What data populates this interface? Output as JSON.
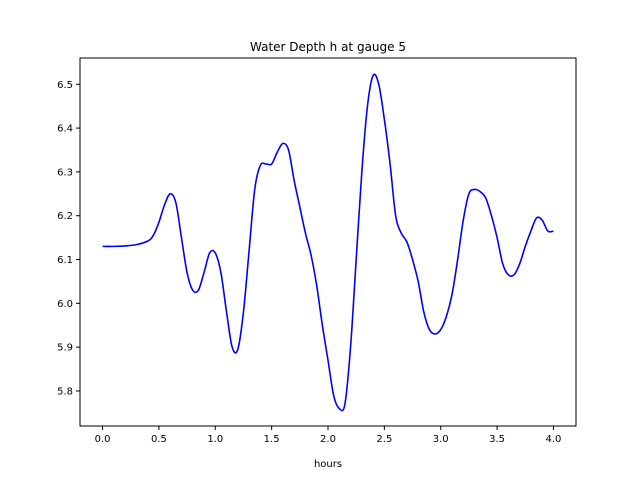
{
  "chart_data": {
    "type": "line",
    "title": "Water Depth h at gauge 5",
    "xlabel": "hours",
    "ylabel": "",
    "xlim": [
      -0.2,
      4.2
    ],
    "ylim": [
      5.72,
      6.56
    ],
    "xticks": [
      0.0,
      0.5,
      1.0,
      1.5,
      2.0,
      2.5,
      3.0,
      3.5,
      4.0
    ],
    "xtick_labels": [
      "0.0",
      "0.5",
      "1.0",
      "1.5",
      "2.0",
      "2.5",
      "3.0",
      "3.5",
      "4.0"
    ],
    "yticks": [
      5.8,
      5.9,
      6.0,
      6.1,
      6.2,
      6.3,
      6.4,
      6.5
    ],
    "ytick_labels": [
      "5.8",
      "5.9",
      "6.0",
      "6.1",
      "6.2",
      "6.3",
      "6.4",
      "6.5"
    ],
    "grid": false,
    "series": [
      {
        "color": "#0000ff",
        "x": [
          0.0,
          0.1,
          0.2,
          0.3,
          0.4,
          0.45,
          0.5,
          0.55,
          0.6,
          0.65,
          0.7,
          0.75,
          0.8,
          0.85,
          0.9,
          0.95,
          1.0,
          1.05,
          1.1,
          1.15,
          1.2,
          1.25,
          1.3,
          1.35,
          1.4,
          1.45,
          1.5,
          1.55,
          1.6,
          1.65,
          1.7,
          1.75,
          1.8,
          1.85,
          1.9,
          1.95,
          2.0,
          2.05,
          2.1,
          2.15,
          2.2,
          2.25,
          2.3,
          2.35,
          2.4,
          2.45,
          2.5,
          2.55,
          2.6,
          2.65,
          2.7,
          2.75,
          2.8,
          2.85,
          2.9,
          2.95,
          3.0,
          3.05,
          3.1,
          3.15,
          3.2,
          3.25,
          3.3,
          3.35,
          3.4,
          3.45,
          3.5,
          3.55,
          3.6,
          3.65,
          3.7,
          3.75,
          3.8,
          3.85,
          3.9,
          3.95,
          4.0
        ],
        "y": [
          6.13,
          6.13,
          6.131,
          6.134,
          6.142,
          6.155,
          6.185,
          6.225,
          6.25,
          6.23,
          6.15,
          6.07,
          6.03,
          6.03,
          6.07,
          6.115,
          6.115,
          6.07,
          5.98,
          5.9,
          5.895,
          5.98,
          6.12,
          6.26,
          6.315,
          6.318,
          6.318,
          6.345,
          6.365,
          6.35,
          6.28,
          6.22,
          6.16,
          6.11,
          6.04,
          5.95,
          5.87,
          5.79,
          5.76,
          5.77,
          5.9,
          6.1,
          6.3,
          6.45,
          6.52,
          6.5,
          6.42,
          6.32,
          6.2,
          6.16,
          6.14,
          6.1,
          6.05,
          5.98,
          5.94,
          5.93,
          5.94,
          5.97,
          6.02,
          6.1,
          6.19,
          6.25,
          6.26,
          6.255,
          6.24,
          6.2,
          6.15,
          6.09,
          6.065,
          6.065,
          6.09,
          6.13,
          6.165,
          6.195,
          6.19,
          6.165,
          6.165
        ]
      }
    ]
  }
}
